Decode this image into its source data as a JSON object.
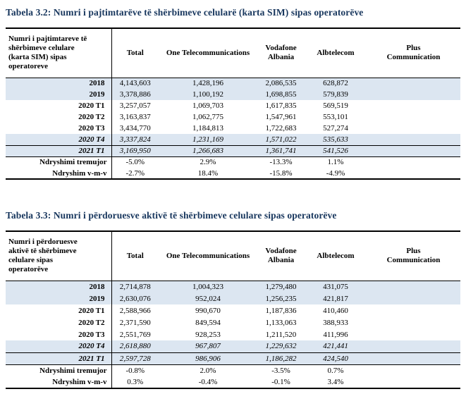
{
  "tables": [
    {
      "title": "Tabela 3.2: Numri i pajtimtarëve të shërbimeve celularë (karta SIM) sipas operatorëve",
      "corner_header": "Numri i pajtimtareve të shërbimeve celulare (karta SIM) sipas operatoreve",
      "columns": [
        "Total",
        "One Telecommunications",
        "Vodafone Albania",
        "Albtelecom",
        "Plus Communication"
      ],
      "rows": [
        {
          "label": "2018",
          "values": [
            "4,143,603",
            "1,428,196",
            "2,086,535",
            "628,872",
            ""
          ],
          "shaded": true,
          "italic": false,
          "bordered": false,
          "kind": "data"
        },
        {
          "label": "2019",
          "values": [
            "3,378,886",
            "1,100,192",
            "1,698,855",
            "579,839",
            ""
          ],
          "shaded": true,
          "italic": false,
          "bordered": false,
          "kind": "data"
        },
        {
          "label": "2020 T1",
          "values": [
            "3,257,057",
            "1,069,703",
            "1,617,835",
            "569,519",
            ""
          ],
          "shaded": false,
          "italic": false,
          "bordered": false,
          "kind": "data"
        },
        {
          "label": "2020 T2",
          "values": [
            "3,163,837",
            "1,062,775",
            "1,547,961",
            "553,101",
            ""
          ],
          "shaded": false,
          "italic": false,
          "bordered": false,
          "kind": "data"
        },
        {
          "label": "2020 T3",
          "values": [
            "3,434,770",
            "1,184,813",
            "1,722,683",
            "527,274",
            ""
          ],
          "shaded": false,
          "italic": false,
          "bordered": false,
          "kind": "data"
        },
        {
          "label": "2020 T4",
          "values": [
            "3,337,824",
            "1,231,169",
            "1,571,022",
            "535,633",
            ""
          ],
          "shaded": true,
          "italic": true,
          "bordered": false,
          "kind": "data"
        },
        {
          "label": "2021 T1",
          "values": [
            "3,169,950",
            "1,266,683",
            "1,361,741",
            "541,526",
            ""
          ],
          "shaded": true,
          "italic": true,
          "bordered": true,
          "kind": "data"
        },
        {
          "label": "Ndryshimi tremujor",
          "values": [
            "-5.0%",
            "2.9%",
            "-13.3%",
            "1.1%",
            ""
          ],
          "shaded": false,
          "italic": false,
          "bordered": false,
          "kind": "summary"
        },
        {
          "label": "Ndryshim v-m-v",
          "values": [
            "-2.7%",
            "18.4%",
            "-15.8%",
            "-4.9%",
            ""
          ],
          "shaded": false,
          "italic": false,
          "bordered": false,
          "kind": "summary"
        }
      ]
    },
    {
      "title": "Tabela 3.3: Numri i përdoruesve aktivë të shërbimeve celulare sipas operatorëve",
      "corner_header": "Numri i përdoruesve aktivë të shërbimeve celulare sipas operatorëve",
      "columns": [
        "Total",
        "One Telecommunications",
        "Vodafone Albania",
        "Albtelecom",
        "Plus Communication"
      ],
      "rows": [
        {
          "label": "2018",
          "values": [
            "2,714,878",
            "1,004,323",
            "1,279,480",
            "431,075",
            ""
          ],
          "shaded": true,
          "italic": false,
          "bordered": false,
          "kind": "data"
        },
        {
          "label": "2019",
          "values": [
            "2,630,076",
            "952,024",
            "1,256,235",
            "421,817",
            ""
          ],
          "shaded": true,
          "italic": false,
          "bordered": false,
          "kind": "data"
        },
        {
          "label": "2020 T1",
          "values": [
            "2,588,966",
            "990,670",
            "1,187,836",
            "410,460",
            ""
          ],
          "shaded": false,
          "italic": false,
          "bordered": false,
          "kind": "data"
        },
        {
          "label": "2020 T2",
          "values": [
            "2,371,590",
            "849,594",
            "1,133,063",
            "388,933",
            ""
          ],
          "shaded": false,
          "italic": false,
          "bordered": false,
          "kind": "data"
        },
        {
          "label": "2020 T3",
          "values": [
            "2,551,769",
            "928,253",
            "1,211,520",
            "411,996",
            ""
          ],
          "shaded": false,
          "italic": false,
          "bordered": false,
          "kind": "data"
        },
        {
          "label": "2020 T4",
          "values": [
            "2,618,880",
            "967,807",
            "1,229,632",
            "421,441",
            ""
          ],
          "shaded": true,
          "italic": true,
          "bordered": false,
          "kind": "data"
        },
        {
          "label": "2021 T1",
          "values": [
            "2,597,728",
            "986,906",
            "1,186,282",
            "424,540",
            ""
          ],
          "shaded": true,
          "italic": true,
          "bordered": true,
          "kind": "data"
        },
        {
          "label": "Ndryshimi tremujor",
          "values": [
            "-0.8%",
            "2.0%",
            "-3.5%",
            "0.7%",
            ""
          ],
          "shaded": false,
          "italic": false,
          "bordered": false,
          "kind": "summary"
        },
        {
          "label": "Ndryshim v-m-v",
          "values": [
            "0.3%",
            "-0.4%",
            "-0.1%",
            "3.4%",
            ""
          ],
          "shaded": false,
          "italic": false,
          "bordered": false,
          "kind": "summary"
        }
      ]
    }
  ]
}
